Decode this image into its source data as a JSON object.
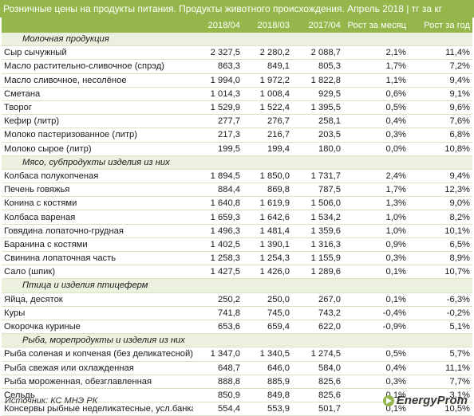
{
  "title": "Розничные цены на продукты питания. Продукты животного происхождения. Апрель 2018 | тг за кг",
  "columns": [
    "",
    "2018/04",
    "2018/03",
    "2017/04",
    "Рост за месяц",
    "Рост за год"
  ],
  "sections": [
    {
      "category": "Молочная продукция",
      "rows": [
        [
          "Сыр сычужный",
          "2 327,5",
          "2 280,2",
          "2 088,7",
          "2,1%",
          "11,4%"
        ],
        [
          "Масло растительно-сливочное (спрэд)",
          "863,3",
          "849,1",
          "805,3",
          "1,7%",
          "7,2%"
        ],
        [
          "Масло сливочное, несолёное",
          "1 994,0",
          "1 972,2",
          "1 822,8",
          "1,1%",
          "9,4%"
        ],
        [
          "Сметана",
          "1 014,3",
          "1 008,4",
          "929,5",
          "0,6%",
          "9,1%"
        ],
        [
          "Творог",
          "1 529,9",
          "1 522,4",
          "1 395,5",
          "0,5%",
          "9,6%"
        ],
        [
          "Кефир (литр)",
          "277,7",
          "276,7",
          "258,1",
          "0,4%",
          "7,6%"
        ],
        [
          "Молоко пастеризованное (литр)",
          "217,3",
          "216,7",
          "203,5",
          "0,3%",
          "6,8%"
        ],
        [
          "Молоко сырое (литр)",
          "199,5",
          "199,4",
          "180,0",
          "0,0%",
          "10,8%"
        ]
      ]
    },
    {
      "category": "Мясо, субпродукты изделия из них",
      "rows": [
        [
          "Колбаса полукопченая",
          "1 894,5",
          "1 850,0",
          "1 731,7",
          "2,4%",
          "9,4%"
        ],
        [
          "Печень говяжья",
          "884,4",
          "869,8",
          "787,5",
          "1,7%",
          "12,3%"
        ],
        [
          "Конина с костями",
          "1 640,8",
          "1 619,9",
          "1 506,0",
          "1,3%",
          "9,0%"
        ],
        [
          "Колбаса вареная",
          "1 659,3",
          "1 642,6",
          "1 534,2",
          "1,0%",
          "8,2%"
        ],
        [
          "Говядина лопаточно-грудная",
          "1 496,3",
          "1 481,4",
          "1 359,6",
          "1,0%",
          "10,1%"
        ],
        [
          "Баранина с костями",
          "1 402,5",
          "1 390,1",
          "1 316,3",
          "0,9%",
          "6,5%"
        ],
        [
          "Свинина лопаточная часть",
          "1 258,3",
          "1 254,3",
          "1 155,9",
          "0,3%",
          "8,9%"
        ],
        [
          "Сало (шпик)",
          "1 427,5",
          "1 426,0",
          "1 289,6",
          "0,1%",
          "10,7%"
        ]
      ]
    },
    {
      "category": "Птица и изделия птицеферм",
      "rows": [
        [
          "Яйца, десяток",
          "250,2",
          "250,0",
          "267,0",
          "0,1%",
          "-6,3%"
        ],
        [
          "Куры",
          "741,8",
          "745,0",
          "743,2",
          "-0,4%",
          "-0,2%"
        ],
        [
          "Окорочка куриные",
          "653,6",
          "659,4",
          "622,0",
          "-0,9%",
          "5,1%"
        ]
      ]
    },
    {
      "category": "Рыба, морепродукты и изделия из них",
      "rows": [
        [
          "Рыба соленая и копченая (без деликатесной)",
          "1 347,0",
          "1 340,5",
          "1 274,5",
          "0,5%",
          "5,7%"
        ],
        [
          "Рыба свежая или охлажденная",
          "648,7",
          "646,0",
          "584,0",
          "0,4%",
          "11,1%"
        ],
        [
          "Рыба мороженная, обезглавленная",
          "888,8",
          "885,9",
          "825,6",
          "0,3%",
          "7,7%"
        ],
        [
          "Сельдь",
          "850,9",
          "849,8",
          "825,6",
          "0,1%",
          "3,1%"
        ],
        [
          "Консервы рыбные неделикатесные, усл.банка",
          "554,4",
          "553,9",
          "501,7",
          "0,1%",
          "10,5%"
        ]
      ]
    }
  ],
  "source": "Источник: КС МНЭ РК",
  "logo_text": "EnergyProm",
  "colors": {
    "accent": "#94b64b",
    "category_bg": "#ebf1de"
  }
}
